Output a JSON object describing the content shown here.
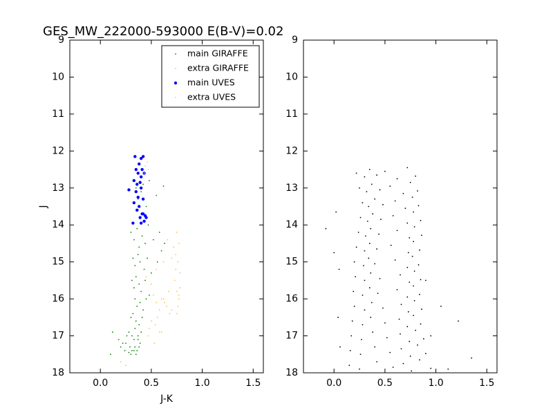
{
  "chart_data": [
    {
      "type": "scatter",
      "title": "GES_MW_222000-593000 E(B-V)=0.02",
      "xlabel": "J-K",
      "ylabel": "J",
      "xlim": [
        -0.3,
        1.6
      ],
      "ylim": [
        18,
        9
      ],
      "xticks": [
        {
          "value": 0,
          "label": "0.0"
        },
        0.5,
        {
          "value": 1,
          "label": "1.0"
        },
        1.5
      ],
      "yticks": [
        9,
        10,
        11,
        12,
        13,
        14,
        15,
        16,
        17,
        18
      ],
      "legend": "upper right",
      "series": [
        {
          "name": "main GIRAFFE",
          "color": "#008000",
          "marker": ".",
          "x": [
            0.33,
            0.35,
            0.37,
            0.4,
            0.42,
            0.45,
            0.48,
            0.55,
            0.62,
            0.3,
            0.33,
            0.36,
            0.38,
            0.41,
            0.44,
            0.47,
            0.52,
            0.58,
            0.63,
            0.32,
            0.34,
            0.37,
            0.39,
            0.43,
            0.46,
            0.5,
            0.56,
            0.6,
            0.31,
            0.33,
            0.35,
            0.38,
            0.4,
            0.44,
            0.48,
            0.34,
            0.36,
            0.39,
            0.42,
            0.45,
            0.3,
            0.32,
            0.35,
            0.38,
            0.41,
            0.28,
            0.31,
            0.34,
            0.37,
            0.4,
            0.25,
            0.29,
            0.33,
            0.36,
            0.39,
            0.2,
            0.26,
            0.31,
            0.35,
            0.38,
            0.12,
            0.18,
            0.24,
            0.3,
            0.34,
            0.37,
            0.1,
            0.22,
            0.28,
            0.33
          ],
          "values": [
            12.8,
            13.0,
            13.3,
            13.1,
            12.9,
            13.5,
            12.8,
            13.2,
            12.95,
            14.2,
            14.4,
            14.1,
            14.6,
            14.3,
            14.5,
            14.0,
            14.4,
            14.2,
            14.5,
            14.9,
            15.1,
            14.8,
            15.0,
            15.2,
            14.9,
            15.3,
            15.0,
            14.7,
            15.5,
            15.7,
            15.4,
            15.6,
            15.8,
            15.5,
            15.9,
            16.0,
            16.2,
            16.1,
            16.3,
            16.0,
            16.5,
            16.4,
            16.6,
            16.7,
            16.5,
            16.9,
            17.0,
            16.8,
            17.1,
            16.9,
            17.2,
            17.3,
            17.1,
            17.4,
            17.2,
            17.3,
            17.0,
            17.4,
            17.5,
            17.3,
            16.9,
            17.1,
            17.4,
            17.5,
            17.3,
            17.0,
            17.5,
            17.2,
            17.45,
            17.4
          ]
        },
        {
          "name": "extra GIRAFFE",
          "color": "#ffc04d",
          "marker": ".",
          "x": [
            0.75,
            0.77,
            0.74,
            0.76,
            0.78,
            0.73,
            0.75,
            0.77,
            0.76,
            0.74,
            0.72,
            0.78,
            0.75,
            0.77,
            0.55,
            0.6,
            0.65,
            0.7,
            0.52,
            0.58,
            0.63,
            0.68,
            0.5,
            0.56,
            0.62,
            0.67,
            0.48,
            0.54,
            0.6,
            0.45,
            0.5,
            0.55,
            0.62,
            0.7,
            0.47,
            0.53,
            0.58,
            0.2,
            0.25,
            0.66
          ],
          "values": [
            14.2,
            14.5,
            14.8,
            15.0,
            15.3,
            15.5,
            15.8,
            16.0,
            16.2,
            15.2,
            14.6,
            15.7,
            16.4,
            15.9,
            16.1,
            16.0,
            16.2,
            16.3,
            15.9,
            16.3,
            16.1,
            16.4,
            16.6,
            16.5,
            16.0,
            15.8,
            16.8,
            16.7,
            16.9,
            15.4,
            15.6,
            15.2,
            15.0,
            14.9,
            17.0,
            17.2,
            16.9,
            17.7,
            17.8,
            14.4
          ]
        },
        {
          "name": "main UVES",
          "color": "#0000ff",
          "marker": "o",
          "x": [
            0.34,
            0.4,
            0.42,
            0.38,
            0.41,
            0.35,
            0.37,
            0.4,
            0.43,
            0.33,
            0.36,
            0.39,
            0.28,
            0.35,
            0.4,
            0.37,
            0.42,
            0.33,
            0.38,
            0.36,
            0.41,
            0.44,
            0.39,
            0.42,
            0.45,
            0.32,
            0.4,
            0.43
          ],
          "values": [
            12.15,
            12.2,
            12.15,
            12.35,
            12.5,
            12.5,
            12.6,
            12.7,
            12.6,
            12.8,
            12.9,
            12.85,
            13.05,
            13.1,
            13.0,
            13.25,
            13.3,
            13.4,
            13.5,
            13.6,
            13.7,
            13.75,
            13.8,
            13.7,
            13.8,
            13.95,
            13.95,
            13.9
          ]
        },
        {
          "name": "extra UVES",
          "color": "#d8caca",
          "marker": ".",
          "x": [
            0.44,
            0.46,
            0.47,
            0.43
          ],
          "values": [
            12.4,
            12.3,
            12.5,
            12.6
          ]
        }
      ]
    },
    {
      "type": "scatter",
      "xlim": [
        -0.3,
        1.6
      ],
      "ylim": [
        18,
        9
      ],
      "xticks": [
        {
          "value": 0,
          "label": "0.0"
        },
        0.5,
        {
          "value": 1,
          "label": "1.0"
        },
        1.5
      ],
      "yticks": [
        9,
        10,
        11,
        12,
        13,
        14,
        15,
        16,
        17,
        18
      ],
      "series": [
        {
          "color": "#000000",
          "marker": ".",
          "x": [
            0.22,
            0.3,
            0.35,
            0.42,
            0.5,
            0.62,
            0.72,
            0.8,
            0.25,
            0.32,
            0.37,
            0.45,
            0.55,
            0.68,
            0.75,
            0.82,
            0.28,
            0.34,
            0.4,
            0.48,
            0.6,
            0.7,
            0.77,
            0.83,
            0.26,
            0.33,
            0.38,
            0.46,
            0.58,
            0.72,
            0.78,
            0.85,
            0.24,
            0.31,
            0.36,
            0.44,
            0.62,
            0.74,
            0.79,
            0.86,
            0.22,
            0.3,
            0.35,
            0.42,
            0.56,
            0.73,
            0.78,
            0.84,
            0.2,
            0.29,
            0.34,
            0.4,
            0.6,
            0.72,
            0.77,
            0.83,
            0.21,
            0.3,
            0.36,
            0.45,
            0.65,
            0.74,
            0.79,
            0.85,
            0.19,
            0.28,
            0.35,
            0.43,
            0.62,
            0.72,
            0.78,
            0.84,
            0.2,
            0.3,
            0.37,
            0.48,
            0.66,
            0.73,
            0.79,
            0.86,
            0.18,
            0.28,
            0.36,
            0.5,
            0.64,
            0.72,
            0.78,
            0.85,
            0.17,
            0.27,
            0.38,
            0.52,
            0.65,
            0.74,
            0.8,
            0.88,
            0.16,
            0.26,
            0.4,
            0.55,
            0.66,
            0.75,
            0.82,
            0.9,
            0.15,
            0.25,
            0.42,
            0.58,
            0.68,
            0.76,
            0.84,
            0.95,
            -0.08,
            0.02,
            0.0,
            0.05,
            1.22,
            1.35,
            1.05,
            0.95,
            0.04,
            1.12,
            0.06,
            0.9
          ],
          "values": [
            12.6,
            12.7,
            12.5,
            12.65,
            12.55,
            12.75,
            12.45,
            12.68,
            13.0,
            13.1,
            12.9,
            13.05,
            12.95,
            13.15,
            12.85,
            13.08,
            13.4,
            13.5,
            13.3,
            13.45,
            13.35,
            13.55,
            13.25,
            13.48,
            13.8,
            13.9,
            13.7,
            13.85,
            13.75,
            13.95,
            13.65,
            13.88,
            14.2,
            14.3,
            14.1,
            14.25,
            14.15,
            14.35,
            14.05,
            14.28,
            14.6,
            14.7,
            14.5,
            14.65,
            14.55,
            14.75,
            14.45,
            14.68,
            15.0,
            15.1,
            14.9,
            15.05,
            14.95,
            15.15,
            14.85,
            15.08,
            15.4,
            15.5,
            15.3,
            15.45,
            15.35,
            15.55,
            15.25,
            15.48,
            15.8,
            15.9,
            15.7,
            15.85,
            15.75,
            15.95,
            15.65,
            15.88,
            16.2,
            16.3,
            16.1,
            16.25,
            16.15,
            16.35,
            16.05,
            16.28,
            16.6,
            16.7,
            16.5,
            16.65,
            16.55,
            16.75,
            16.45,
            16.68,
            17.0,
            17.1,
            16.9,
            17.05,
            16.95,
            17.15,
            16.85,
            17.08,
            17.4,
            17.5,
            17.3,
            17.45,
            17.35,
            17.55,
            17.25,
            17.48,
            17.8,
            17.9,
            17.7,
            17.85,
            17.75,
            17.95,
            17.65,
            17.88,
            14.1,
            13.65,
            14.75,
            15.2,
            16.6,
            17.6,
            16.2,
            17.0,
            16.5,
            17.9,
            17.3,
            15.5
          ]
        }
      ]
    }
  ]
}
